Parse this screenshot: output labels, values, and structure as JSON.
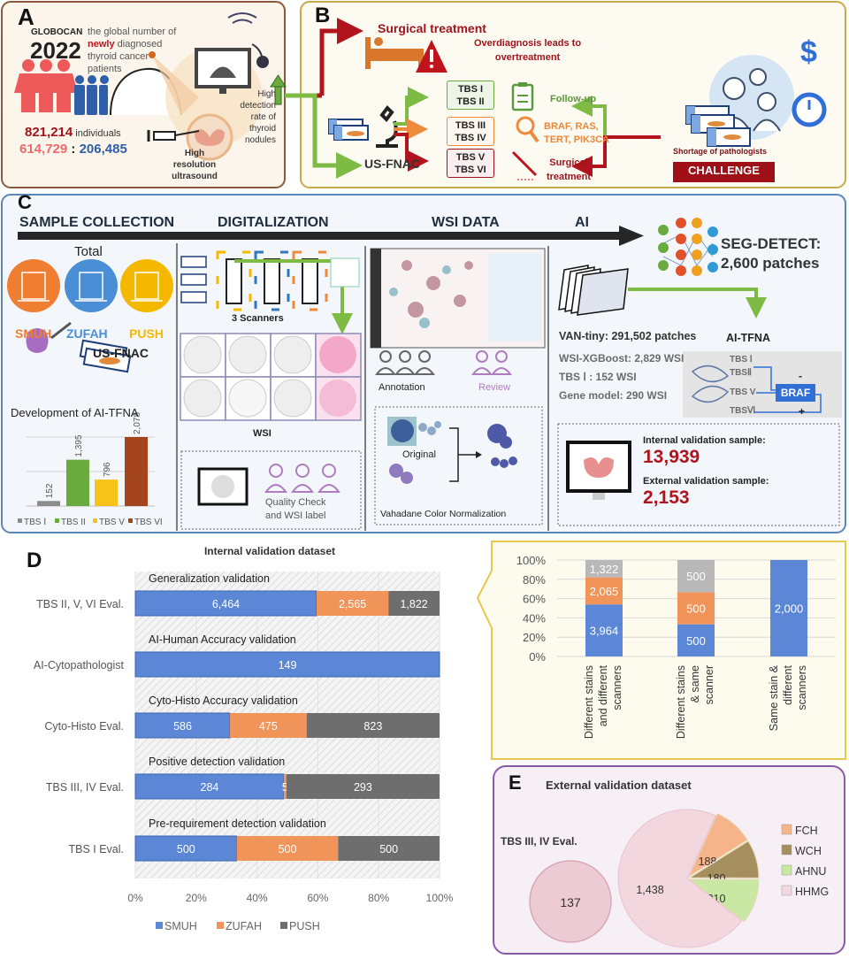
{
  "panel_a": {
    "label": "A",
    "globocan": "GLOBOCAN",
    "year": "2022",
    "desc_pre": "the global number of",
    "desc_highlight": "newly",
    "desc_post": "diagnosed thyroid cancer patients",
    "total": "821,214",
    "total_unit": "individuals",
    "female": "614,729",
    "separator": ":",
    "male": "206,485",
    "ultrasound": "High\nresolution\nultrasound",
    "detection": "High\ndetection\nrate of\nthyroid\nnodules"
  },
  "panel_b": {
    "label": "B",
    "surgical_top": "Surgical treatment",
    "overdiagnosis": "Overdiagnosis leads to\novertreatment",
    "usfnac": "US-FNAC",
    "tbs_groups": [
      "TBS I\nTBS II",
      "TBS III\nTBS IV",
      "TBS V\nTBS VI"
    ],
    "followup": "Follow-up",
    "genes": "BRAF, RAS,\nTERT, PIK3CA",
    "surgical": "Surgical\ntreatment",
    "shortage": "Shortage of pathologists",
    "challenge": "CHALLENGE"
  },
  "panel_c": {
    "label": "C",
    "stages": [
      "SAMPLE COLLECTION",
      "DIGITALIZATION",
      "WSI DATA",
      "AI"
    ],
    "total": "Total",
    "hospitals": [
      "SMUH",
      "ZUFAH",
      "PUSH"
    ],
    "hospital_colors": [
      "#ef7d32",
      "#4a8fd6",
      "#f5b800"
    ],
    "usfnac": "US-FNAC",
    "development": "Development of AI-TFNA",
    "scanners": "3 Scanners",
    "wsi": "WSI",
    "quality_check": "Quality Check\nand WSI label",
    "annotation": "Annotation",
    "review": "Review",
    "original": "Original",
    "normalization": "Vahadane Color Normalization",
    "seg_detect": "SEG-DETECT:\n2,600 patches",
    "van_tiny": "VAN-tiny: 291,502 patches",
    "ai_tfna": "AI-TFNA",
    "wsi_xgboost": "WSI-XGBoost: 2,829 WSI",
    "tbs1_model": "TBS Ⅰ : 152 WSI",
    "gene_model": "Gene model: 290 WSI",
    "tbs_list": [
      "TBS Ⅰ",
      "TBSⅡ",
      "TBS V",
      "TBSⅥ"
    ],
    "braf": "BRAF",
    "minus": "-",
    "plus": "+",
    "internal_label": "Internal validation sample:",
    "internal_value": "13,939",
    "external_label": "External validation sample:",
    "external_value": "2,153"
  },
  "panel_d": {
    "label": "D"
  },
  "panel_e": {
    "label": "E"
  },
  "chart_data": [
    {
      "type": "bar",
      "categories": [
        "TBS Ⅰ",
        "TBS II",
        "TBS V",
        "TBS VI"
      ],
      "values": [
        152,
        1395,
        796,
        2078
      ],
      "value_labels": [
        "152",
        "1,395",
        "796",
        "2,078"
      ],
      "colors": [
        "#8c8c8c",
        "#6aaa3f",
        "#f7c21a",
        "#a4451d"
      ],
      "legend": "bottom",
      "grid": true
    },
    {
      "type": "bar",
      "orientation": "horizontal",
      "stacked": "percent",
      "title": "Internal validation dataset",
      "categories": [
        "TBS II, V, VI Eval.",
        "AI-Cytopathologist",
        "Cyto-Histo Eval.",
        "TBS III, IV Eval.",
        "TBS I Eval."
      ],
      "group_titles": [
        "Generalization validation",
        "AI-Human Accuracy validation",
        "Cyto-Histo Accuracy validation",
        "Positive detection validation",
        "Pre-requirement detection validation"
      ],
      "series": [
        {
          "name": "SMUH",
          "color": "#5b87d6",
          "values": [
            6464,
            149,
            586,
            284,
            500
          ],
          "labels": [
            "6,464",
            "149",
            "586",
            "284",
            "500"
          ]
        },
        {
          "name": "ZUFAH",
          "color": "#f0945a",
          "values": [
            2565,
            0,
            475,
            5,
            500
          ],
          "labels": [
            "2,565",
            "",
            "475",
            "5",
            "500"
          ]
        },
        {
          "name": "PUSH",
          "color": "#6e6e6e",
          "values": [
            1822,
            0,
            823,
            293,
            500
          ],
          "labels": [
            "1,822",
            "",
            "823",
            "293",
            "500"
          ]
        }
      ],
      "xticks": [
        "0%",
        "20%",
        "40%",
        "60%",
        "80%",
        "100%"
      ],
      "xlim": [
        0,
        100
      ],
      "legend": "bottom",
      "grid": true
    },
    {
      "type": "bar",
      "stacked": "percent",
      "categories": [
        "Different stains\nand different\nscanners",
        "Different stains\n& same\nscanner",
        "Same stain &\ndifferent\nscanners"
      ],
      "series": [
        {
          "color": "#5b87d6",
          "values": [
            3964,
            500,
            2000
          ],
          "labels": [
            "3,964",
            "500",
            "2,000"
          ]
        },
        {
          "color": "#f0945a",
          "values": [
            2065,
            500,
            0
          ],
          "labels": [
            "2,065",
            "500",
            ""
          ]
        },
        {
          "color": "#b8b8b8",
          "values": [
            1322,
            500,
            0
          ],
          "labels": [
            "1,322",
            "500",
            ""
          ]
        }
      ],
      "yticks": [
        "0%",
        "20%",
        "40%",
        "60%",
        "80%",
        "100%"
      ],
      "ylim": [
        0,
        100
      ],
      "grid": true
    },
    {
      "type": "pie",
      "title": "External validation dataset",
      "bubble_label": "TBS III, IV Eval.",
      "bubble_value": "137",
      "slices": [
        {
          "name": "FCH",
          "value": 188,
          "label": "188",
          "color": "#f6b48a"
        },
        {
          "name": "WCH",
          "value": 180,
          "label": "180",
          "color": "#a68f5e"
        },
        {
          "name": "AHNU",
          "value": 210,
          "label": "210",
          "color": "#c9e8a4"
        },
        {
          "name": "HHMG",
          "value": 1438,
          "label": "1,438",
          "color": "#f2d7df"
        }
      ],
      "legend": "right"
    }
  ]
}
